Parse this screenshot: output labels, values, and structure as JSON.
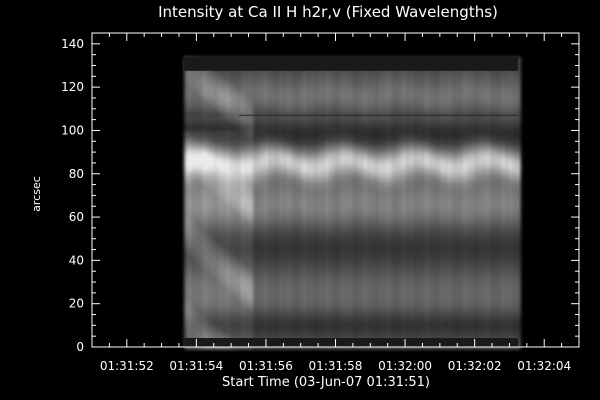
{
  "chart_data": {
    "type": "heatmap",
    "title": "Intensity at Ca II H h2r,v (Fixed Wavelengths)",
    "xlabel": "Start Time (03-Jun-07 01:31:51)",
    "ylabel": "arcsec",
    "x_ticks": [
      "01:31:52",
      "01:31:54",
      "01:31:56",
      "01:31:58",
      "01:32:00",
      "01:32:02",
      "01:32:04"
    ],
    "x_tick_seconds": [
      1,
      3,
      5,
      7,
      9,
      11,
      13
    ],
    "xlim_seconds": [
      0,
      14
    ],
    "y_ticks": [
      0,
      20,
      40,
      60,
      80,
      100,
      120,
      140
    ],
    "ylim": [
      0,
      145
    ],
    "data_extent": {
      "x_seconds": [
        2.65,
        12.25
      ],
      "y_arcsec": [
        0,
        134
      ]
    },
    "bright_bands_arcsec": [
      {
        "center": 85,
        "width": 5,
        "strength": 1.0
      },
      {
        "center": 65,
        "width": 7,
        "strength": 0.35
      },
      {
        "center": 116,
        "width": 6,
        "strength": 0.35
      },
      {
        "center": 30,
        "width": 15,
        "strength": 0.15
      }
    ],
    "dark_bands_arcsec": [
      {
        "center": 98,
        "width": 6
      },
      {
        "center": 45,
        "width": 9
      },
      {
        "center": 10,
        "width": 5
      }
    ],
    "colormap": "grayscale",
    "frame_color": "#ffffff",
    "background_color": "#000000"
  }
}
